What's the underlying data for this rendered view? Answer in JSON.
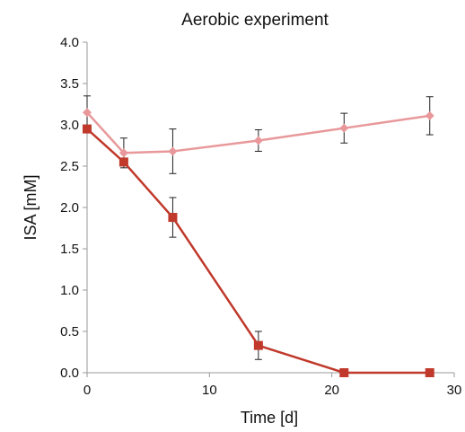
{
  "chart_data": {
    "type": "line",
    "title": "Aerobic experiment",
    "xlabel": "Time [d]",
    "ylabel": "ISA [mM]",
    "xlim": [
      0,
      30
    ],
    "ylim": [
      0,
      4.0
    ],
    "xticks": [
      0,
      10,
      20,
      30
    ],
    "xtick_labels": [
      "0",
      "10",
      "20",
      "30"
    ],
    "yticks": [
      0,
      0.5,
      1.0,
      1.5,
      2.0,
      2.5,
      3.0,
      3.5,
      4.0
    ],
    "ytick_labels": [
      "0.0",
      "0.5",
      "1.0",
      "1.5",
      "2.0",
      "2.5",
      "3.0",
      "3.5",
      "4.0"
    ],
    "grid": false,
    "legend": "none",
    "series": [
      {
        "marker": "diamond",
        "color": "#e8989a",
        "x": [
          0,
          3,
          7,
          14,
          21,
          28
        ],
        "y": [
          3.15,
          2.66,
          2.68,
          2.81,
          2.96,
          3.11
        ],
        "err": [
          0.2,
          0.18,
          0.27,
          0.13,
          0.18,
          0.23
        ]
      },
      {
        "marker": "square",
        "color": "#c0392b",
        "x": [
          0,
          3,
          7,
          14,
          21,
          28
        ],
        "y": [
          2.95,
          2.55,
          1.88,
          0.33,
          0.0,
          0.0
        ],
        "err": [
          0.0,
          0.0,
          0.24,
          0.17,
          0.0,
          0.0
        ]
      }
    ]
  }
}
